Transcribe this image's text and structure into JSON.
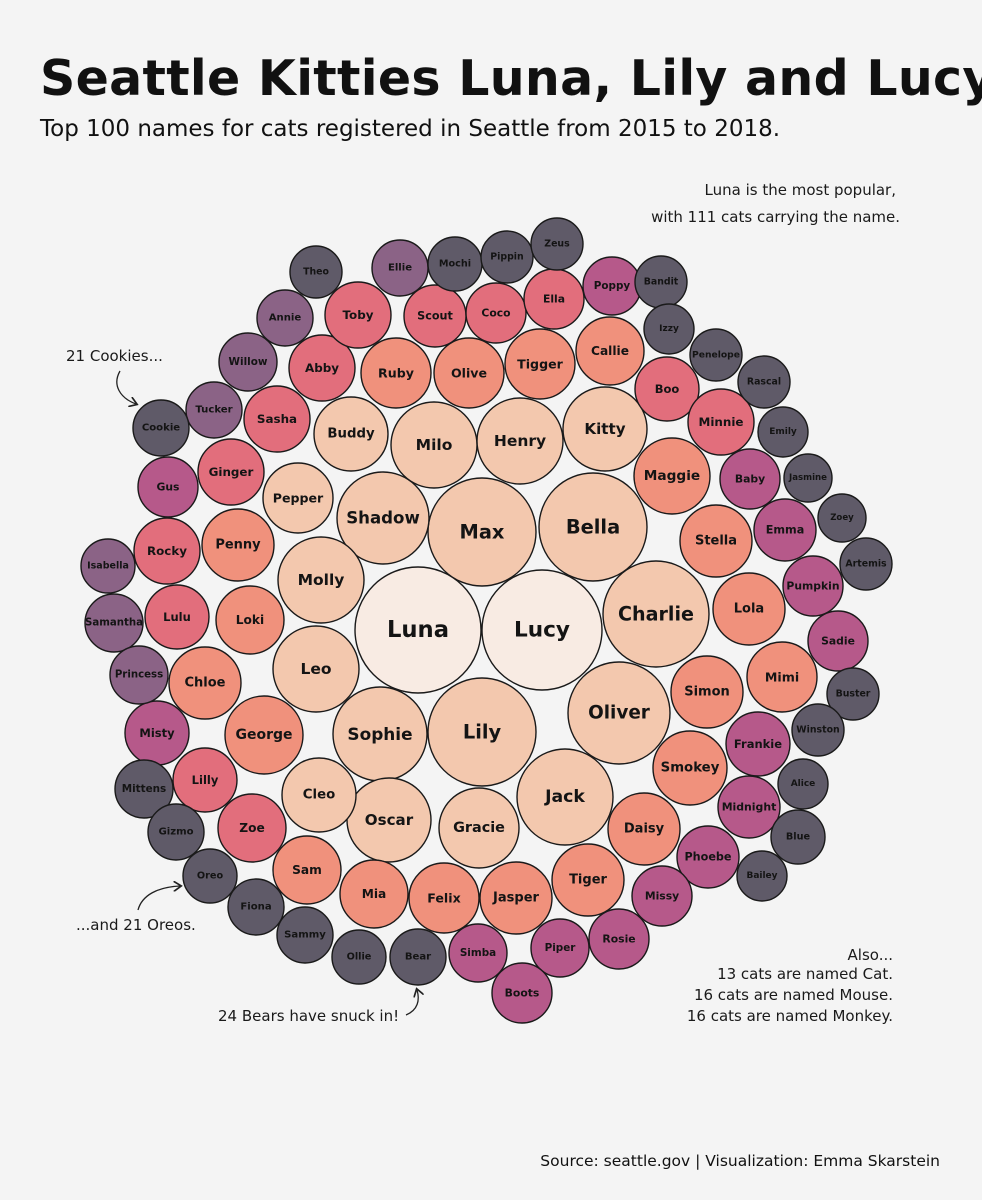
{
  "title": "Seattle Kitties Luna, Lily and Lucy",
  "subtitle": "Top 100 names for cats registered in Seattle from 2015 to 2018.",
  "annotations": {
    "luna": [
      "Luna is the most popular,",
      "with 111 cats carrying the name."
    ],
    "cookies": "21 Cookies...",
    "oreos": "...and 21 Oreos.",
    "bears": "24 Bears have snuck in!",
    "also": [
      "Also...",
      "13 cats are named Cat.",
      "16 cats are named Mouse.",
      "16 cats are named Monkey."
    ]
  },
  "source": "Source: seattle.gov  |  Visualization: Emma Skarstein",
  "chart_data": {
    "type": "packed-bubble",
    "unit": "cats",
    "color_scale": [
      "#f8ebe3",
      "#f3c8ae",
      "#f0917c",
      "#e26e7c",
      "#b6598a",
      "#8b6386",
      "#5f5a68"
    ],
    "points": [
      {
        "name": "Luna",
        "value": 111
      },
      {
        "name": "Lucy",
        "value": 104
      },
      {
        "name": "Lily",
        "value": 78
      },
      {
        "name": "Max",
        "value": 78
      },
      {
        "name": "Bella",
        "value": 78
      },
      {
        "name": "Charlie",
        "value": 72
      },
      {
        "name": "Oliver",
        "value": 64
      },
      {
        "name": "Jack",
        "value": 60
      },
      {
        "name": "Sophie",
        "value": 57
      },
      {
        "name": "Shadow",
        "value": 54
      },
      {
        "name": "Molly",
        "value": 54
      },
      {
        "name": "Leo",
        "value": 54
      },
      {
        "name": "Milo",
        "value": 54
      },
      {
        "name": "Henry",
        "value": 54
      },
      {
        "name": "Oscar",
        "value": 48
      },
      {
        "name": "Gracie",
        "value": 48
      },
      {
        "name": "Kitty",
        "value": 48
      },
      {
        "name": "Buddy",
        "value": 48
      },
      {
        "name": "Pepper",
        "value": 48
      },
      {
        "name": "Cleo",
        "value": 48
      },
      {
        "name": "Stella",
        "value": 45
      },
      {
        "name": "George",
        "value": 45
      },
      {
        "name": "Maggie",
        "value": 45
      },
      {
        "name": "Daisy",
        "value": 45
      },
      {
        "name": "Smokey",
        "value": 45
      },
      {
        "name": "Simon",
        "value": 45
      },
      {
        "name": "Loki",
        "value": 42
      },
      {
        "name": "Penny",
        "value": 42
      },
      {
        "name": "Chloe",
        "value": 42
      },
      {
        "name": "Lola",
        "value": 42
      },
      {
        "name": "Jasper",
        "value": 42
      },
      {
        "name": "Tiger",
        "value": 42
      },
      {
        "name": "Felix",
        "value": 40
      },
      {
        "name": "Olive",
        "value": 40
      },
      {
        "name": "Tigger",
        "value": 40
      },
      {
        "name": "Callie",
        "value": 40
      },
      {
        "name": "Ruby",
        "value": 40
      },
      {
        "name": "Mimi",
        "value": 40
      },
      {
        "name": "Mia",
        "value": 38
      },
      {
        "name": "Sam",
        "value": 38
      },
      {
        "name": "Zoe",
        "value": 37
      },
      {
        "name": "Lilly",
        "value": 36
      },
      {
        "name": "Lulu",
        "value": 36
      },
      {
        "name": "Rocky",
        "value": 36
      },
      {
        "name": "Ginger",
        "value": 36
      },
      {
        "name": "Sasha",
        "value": 36
      },
      {
        "name": "Abby",
        "value": 35
      },
      {
        "name": "Toby",
        "value": 35
      },
      {
        "name": "Scout",
        "value": 33
      },
      {
        "name": "Coco",
        "value": 33
      },
      {
        "name": "Ella",
        "value": 33
      },
      {
        "name": "Boo",
        "value": 33
      },
      {
        "name": "Minnie",
        "value": 33
      },
      {
        "name": "Baby",
        "value": 32
      },
      {
        "name": "Emma",
        "value": 32
      },
      {
        "name": "Pumpkin",
        "value": 32
      },
      {
        "name": "Frankie",
        "value": 32
      },
      {
        "name": "Midnight",
        "value": 32
      },
      {
        "name": "Phoebe",
        "value": 31
      },
      {
        "name": "Missy",
        "value": 31
      },
      {
        "name": "Rosie",
        "value": 30
      },
      {
        "name": "Piper",
        "value": 30
      },
      {
        "name": "Simba",
        "value": 30
      },
      {
        "name": "Boots",
        "value": 30
      },
      {
        "name": "Misty",
        "value": 30
      },
      {
        "name": "Gus",
        "value": 30
      },
      {
        "name": "Sadie",
        "value": 30
      },
      {
        "name": "Poppy",
        "value": 30
      },
      {
        "name": "Ellie",
        "value": 29
      },
      {
        "name": "Annie",
        "value": 28
      },
      {
        "name": "Willow",
        "value": 28
      },
      {
        "name": "Tucker",
        "value": 28
      },
      {
        "name": "Cookie",
        "value": 21
      },
      {
        "name": "Isabella",
        "value": 25
      },
      {
        "name": "Samantha",
        "value": 26
      },
      {
        "name": "Princess",
        "value": 25
      },
      {
        "name": "Mittens",
        "value": 24
      },
      {
        "name": "Gizmo",
        "value": 24
      },
      {
        "name": "Oreo",
        "value": 21
      },
      {
        "name": "Fiona",
        "value": 24
      },
      {
        "name": "Sammy",
        "value": 24
      },
      {
        "name": "Ollie",
        "value": 24
      },
      {
        "name": "Bear",
        "value": 24
      },
      {
        "name": "Theo",
        "value": 24
      },
      {
        "name": "Mochi",
        "value": 24
      },
      {
        "name": "Pippin",
        "value": 23
      },
      {
        "name": "Zeus",
        "value": 23
      },
      {
        "name": "Bandit",
        "value": 23
      },
      {
        "name": "Izzy",
        "value": 23
      },
      {
        "name": "Penelope",
        "value": 23
      },
      {
        "name": "Rascal",
        "value": 23
      },
      {
        "name": "Emily",
        "value": 23
      },
      {
        "name": "Jasmine",
        "value": 22
      },
      {
        "name": "Zoey",
        "value": 22
      },
      {
        "name": "Artemis",
        "value": 22
      },
      {
        "name": "Buster",
        "value": 23
      },
      {
        "name": "Winston",
        "value": 23
      },
      {
        "name": "Alice",
        "value": 23
      },
      {
        "name": "Blue",
        "value": 23
      },
      {
        "name": "Bailey",
        "value": 22
      }
    ]
  }
}
